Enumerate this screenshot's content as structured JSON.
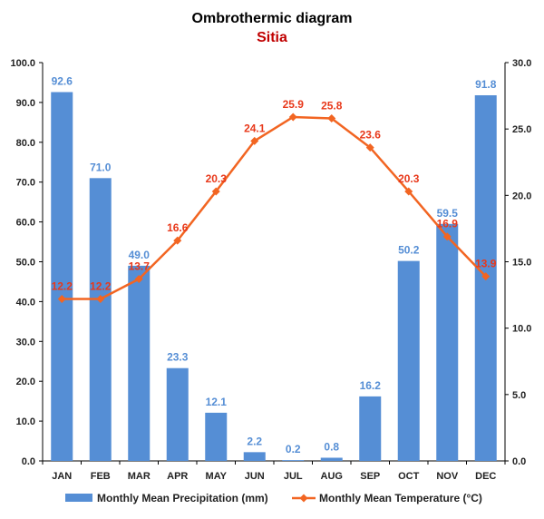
{
  "chart_data": {
    "type": "bar",
    "title": "Ombrothermic diagram",
    "subtitle": "Sitia",
    "categories": [
      "JAN",
      "FEB",
      "MAR",
      "APR",
      "MAY",
      "JUN",
      "JUL",
      "AUG",
      "SEP",
      "OCT",
      "NOV",
      "DEC"
    ],
    "series": [
      {
        "name": "Monthly Mean Precipitation (mm)",
        "type": "bar",
        "axis": "left",
        "color": "#558ed5",
        "label_color": "#558ed5",
        "values": [
          92.6,
          71.0,
          49.0,
          23.3,
          12.1,
          2.2,
          0.2,
          0.8,
          16.2,
          50.2,
          59.5,
          91.8
        ],
        "labels": [
          "92.6",
          "71.0",
          "49.0",
          "23.3",
          "12.1",
          "2.2",
          "0.2",
          "0.8",
          "16.2",
          "50.2",
          "59.5",
          "91.8"
        ]
      },
      {
        "name": "Monthly Mean Temperature (°C)",
        "type": "line",
        "axis": "right",
        "color": "#f26522",
        "label_color": "#e8381a",
        "marker": "diamond",
        "values": [
          12.2,
          12.2,
          13.7,
          16.6,
          20.3,
          24.1,
          25.9,
          25.8,
          23.6,
          20.3,
          16.9,
          13.9
        ],
        "labels": [
          "12.2",
          "12.2",
          "13.7",
          "16.6",
          "20.3",
          "24.1",
          "25.9",
          "25.8",
          "23.6",
          "20.3",
          "16.9",
          "13.9"
        ]
      }
    ],
    "y_left": {
      "min": 0,
      "max": 100,
      "ticks": [
        0,
        10,
        20,
        30,
        40,
        50,
        60,
        70,
        80,
        90,
        100
      ],
      "tick_labels": [
        "0.0",
        "10.0",
        "20.0",
        "30.0",
        "40.0",
        "50.0",
        "60.0",
        "70.0",
        "80.0",
        "90.0",
        "100.0"
      ]
    },
    "y_right": {
      "min": 0,
      "max": 30,
      "ticks": [
        0,
        5,
        10,
        15,
        20,
        25,
        30
      ],
      "tick_labels": [
        "0.0",
        "5.0",
        "10.0",
        "15.0",
        "20.0",
        "25.0",
        "30.0"
      ]
    },
    "xlabel": "",
    "ylabel": "",
    "grid": false,
    "legend_position": "bottom"
  }
}
